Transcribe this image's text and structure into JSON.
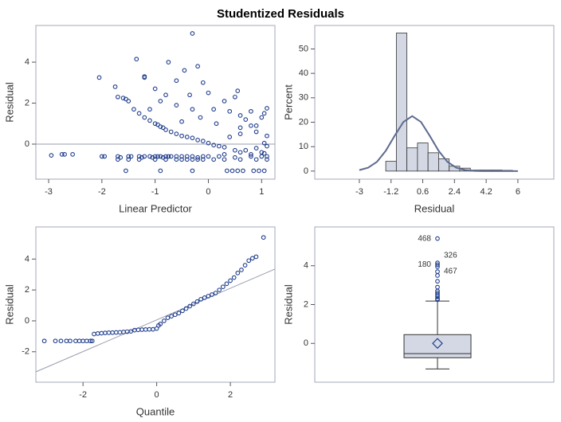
{
  "title": "Studentized Residuals",
  "chart_data": [
    {
      "type": "scatter",
      "xlabel": "Linear Predictor",
      "ylabel": "Residual",
      "xlim": [
        -3.24,
        1.25
      ],
      "ylim": [
        -1.71,
        5.79
      ],
      "xticks": [
        -3,
        -2,
        -1,
        0,
        1
      ],
      "yticks": [
        0,
        2,
        4
      ],
      "reference_y": 0,
      "color": "#1f3d8c",
      "x": [
        -2.95,
        -2.75,
        -2.7,
        -2.55,
        -2.0,
        -1.95,
        -1.7,
        -1.65,
        -1.5,
        -1.45,
        -1.3,
        -1.25,
        -1.2,
        -1.1,
        -1.05,
        -1.0,
        -0.95,
        -0.9,
        -0.85,
        -0.8,
        -0.75,
        -0.7,
        -0.6,
        -0.5,
        -0.4,
        -0.3,
        -0.2,
        -0.1,
        0.0,
        0.2,
        0.5,
        0.8,
        1.0,
        1.1,
        -1.7,
        -1.5,
        -1.3,
        -1.0,
        -0.8,
        -0.6,
        -0.5,
        -0.4,
        -0.3,
        -0.2,
        -0.1,
        0.1,
        0.3,
        0.6,
        0.9,
        1.1,
        -1.55,
        -0.9,
        -0.3,
        0.35,
        0.45,
        0.55,
        0.65,
        0.85,
        0.95,
        1.05,
        0.5,
        0.6,
        0.7,
        0.9,
        1.0,
        1.1,
        0.3,
        0.8,
        1.05,
        -2.05,
        -1.75,
        -1.7,
        -1.55,
        -1.5,
        -1.4,
        -1.3,
        -1.2,
        -1.1,
        -1.0,
        -0.95,
        -0.9,
        -0.85,
        -0.8,
        -0.7,
        -0.6,
        -0.5,
        -0.4,
        -0.3,
        -0.2,
        -0.1,
        0.0,
        0.1,
        0.2,
        0.3,
        -1.35,
        -1.2,
        -1.2,
        -0.75,
        -0.3,
        -0.45,
        -0.6,
        -0.35,
        -0.2,
        -0.1,
        0.0,
        -0.8,
        -0.9,
        -0.6,
        -1.0,
        -0.3,
        0.3,
        0.1,
        0.5,
        0.6,
        0.55,
        0.8,
        0.9,
        1.0,
        1.1,
        1.05,
        0.7,
        0.4,
        0.15,
        -0.5,
        -0.15,
        0.6,
        0.8,
        0.9,
        1.1,
        1.05,
        0.6,
        0.4,
        -1.1,
        -1.6
      ],
      "values": [
        -0.55,
        -0.5,
        -0.5,
        -0.5,
        -0.6,
        -0.6,
        -0.6,
        -0.65,
        -0.6,
        -0.6,
        -0.6,
        -0.65,
        -0.6,
        -0.6,
        -0.65,
        -0.6,
        -0.6,
        -0.6,
        -0.65,
        -0.6,
        -0.6,
        -0.6,
        -0.6,
        -0.6,
        -0.6,
        -0.6,
        -0.65,
        -0.6,
        -0.6,
        -0.6,
        -0.65,
        -0.6,
        -0.6,
        -0.6,
        -0.75,
        -0.75,
        -0.75,
        -0.75,
        -0.75,
        -0.75,
        -0.75,
        -0.75,
        -0.75,
        -0.75,
        -0.75,
        -0.75,
        -0.75,
        -0.75,
        -0.75,
        -0.75,
        -1.3,
        -1.3,
        -1.3,
        -1.3,
        -1.3,
        -1.3,
        -1.3,
        -1.3,
        -1.3,
        -1.3,
        -0.3,
        -0.4,
        -0.3,
        -0.2,
        -0.4,
        -0.1,
        -0.5,
        -0.5,
        -0.45,
        3.25,
        2.8,
        2.3,
        2.2,
        2.1,
        1.7,
        1.5,
        1.3,
        1.15,
        1.0,
        0.95,
        0.85,
        0.8,
        0.7,
        0.6,
        0.5,
        0.4,
        0.35,
        0.3,
        0.2,
        0.15,
        0.05,
        -0.05,
        -0.1,
        -0.15,
        4.15,
        3.3,
        3.25,
        4.0,
        5.4,
        3.6,
        3.1,
        2.4,
        3.8,
        3.0,
        2.5,
        2.4,
        2.1,
        1.9,
        2.7,
        1.7,
        2.1,
        1.7,
        2.3,
        1.4,
        2.6,
        1.6,
        0.9,
        1.3,
        1.75,
        1.5,
        1.2,
        1.6,
        1.0,
        1.1,
        1.3,
        0.8,
        0.9,
        0.6,
        0.4,
        0.05,
        0.5,
        0.35,
        1.7,
        2.25
      ]
    },
    {
      "type": "histogram",
      "xlabel": "Residual",
      "ylabel": "Percent",
      "xlim": [
        -5.53,
        8.04
      ],
      "ylim": [
        -3.3,
        59.6
      ],
      "xticks": [
        -3,
        -1.2,
        0.6,
        2.4,
        4.2,
        6
      ],
      "yticks": [
        0,
        10,
        20,
        30,
        40,
        50
      ],
      "bins": [
        -1.5,
        -0.9,
        -0.3,
        0.3,
        0.9,
        1.5,
        2.1,
        2.7,
        3.3,
        3.9,
        4.5,
        5.1,
        5.7
      ],
      "values": [
        4,
        56.5,
        9.5,
        11.5,
        7.5,
        5,
        2,
        1.2,
        0.4,
        0.4,
        0.4,
        0.3
      ],
      "color": "#d3d8e4",
      "curve": {
        "color": "#5d6b8f",
        "x": [
          -3,
          -2.5,
          -2,
          -1.5,
          -1,
          -0.5,
          0,
          0.5,
          1,
          1.5,
          2,
          2.5,
          3,
          3.5,
          4,
          5,
          6
        ],
        "y": [
          0.4,
          1.4,
          3.8,
          8.3,
          14.4,
          20.1,
          22.5,
          20.1,
          14.4,
          8.3,
          3.8,
          1.4,
          0.4,
          0.1,
          0,
          0,
          0
        ]
      }
    },
    {
      "type": "scatter",
      "xlabel": "Quantile",
      "ylabel": "Residual",
      "xlim": [
        -3.28,
        3.21
      ],
      "ylim": [
        -3.97,
        6.08
      ],
      "xticks": [
        -2,
        0,
        2
      ],
      "yticks": [
        -2,
        0,
        2,
        4
      ],
      "color": "#1f3d8c",
      "reference_line": {
        "color": "#9a9cae",
        "x": [
          -3.28,
          3.21
        ],
        "y": [
          -3.3,
          3.35
        ]
      },
      "x": [
        -3.05,
        -2.75,
        -2.6,
        -2.45,
        -2.35,
        -2.2,
        -2.1,
        -2.0,
        -1.9,
        -1.8,
        -1.75,
        -1.7,
        -1.6,
        -1.5,
        -1.4,
        -1.3,
        -1.2,
        -1.1,
        -1.0,
        -0.9,
        -0.8,
        -0.7,
        -0.6,
        -0.5,
        -0.4,
        -0.3,
        -0.2,
        -0.1,
        0.0,
        0.05,
        0.1,
        0.2,
        0.3,
        0.4,
        0.5,
        0.6,
        0.7,
        0.8,
        0.9,
        1.0,
        1.1,
        1.2,
        1.3,
        1.4,
        1.5,
        1.6,
        1.7,
        1.8,
        1.9,
        2.0,
        2.1,
        2.2,
        2.3,
        2.4,
        2.5,
        2.6,
        2.7,
        2.9
      ],
      "values": [
        -1.3,
        -1.3,
        -1.3,
        -1.3,
        -1.3,
        -1.3,
        -1.3,
        -1.3,
        -1.3,
        -1.3,
        -1.3,
        -0.85,
        -0.82,
        -0.8,
        -0.78,
        -0.77,
        -0.76,
        -0.75,
        -0.74,
        -0.72,
        -0.7,
        -0.68,
        -0.6,
        -0.58,
        -0.57,
        -0.56,
        -0.55,
        -0.55,
        -0.5,
        -0.3,
        -0.2,
        0.0,
        0.2,
        0.3,
        0.4,
        0.5,
        0.65,
        0.8,
        0.95,
        1.1,
        1.25,
        1.4,
        1.5,
        1.6,
        1.7,
        1.8,
        2.0,
        2.2,
        2.4,
        2.6,
        2.8,
        3.1,
        3.3,
        3.6,
        3.9,
        4.05,
        4.15,
        5.4
      ]
    },
    {
      "type": "box",
      "ylabel": "Residual",
      "ylim": [
        -2.0,
        6.0
      ],
      "yticks": [
        0,
        2,
        4
      ],
      "color": "#d3d8e4",
      "whisker_low": -1.32,
      "q1": -0.74,
      "median": -0.53,
      "q3": 0.45,
      "whisker_high": 2.18,
      "mean": 0.0,
      "outliers": [
        2.25,
        2.3,
        2.4,
        2.5,
        2.6,
        2.7,
        2.9,
        3.2,
        3.5,
        3.7,
        3.95,
        4.05,
        4.15,
        5.4
      ],
      "value_labels": [
        null,
        null,
        null,
        null,
        null,
        null,
        null,
        null,
        null,
        null,
        "467",
        "180",
        "326",
        "468"
      ]
    }
  ]
}
